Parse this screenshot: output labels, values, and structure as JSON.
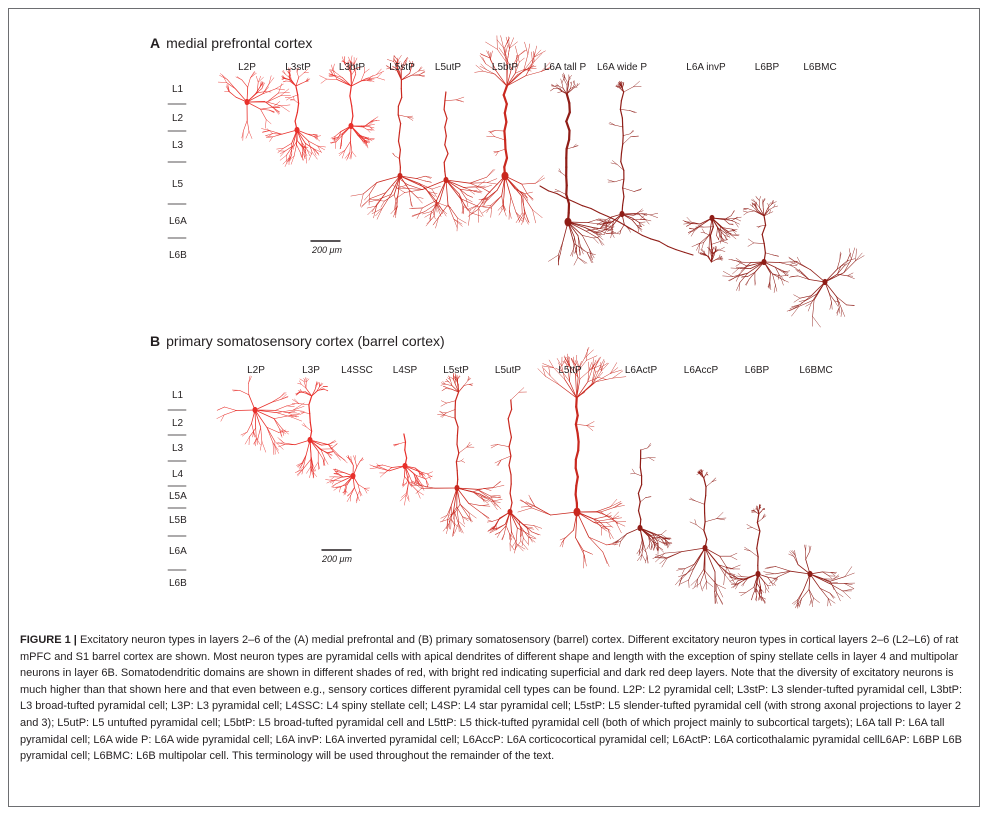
{
  "panel_a": {
    "letter": "A",
    "title": "medial prefrontal cortex",
    "cells": [
      "L2P",
      "L3stP",
      "L3btP",
      "L5stP",
      "L5utP",
      "L5btP",
      "L6A tall P",
      "L6A wide P",
      "L6A invP",
      "L6BP",
      "L6BMC"
    ],
    "layers": [
      "L1",
      "L2",
      "L3",
      "L5",
      "L6A",
      "L6B"
    ],
    "scale": "200 μm"
  },
  "panel_b": {
    "letter": "B",
    "title": "primary somatosensory cortex (barrel cortex)",
    "cells": [
      "L2P",
      "L3P",
      "L4SSC",
      "L4SP",
      "L5stP",
      "L5utP",
      "L5ttP",
      "L6ActP",
      "L6AccP",
      "L6BP",
      "L6BMC"
    ],
    "layers": [
      "L1",
      "L2",
      "L3",
      "L4",
      "L5A",
      "L5B",
      "L6A",
      "L6B"
    ],
    "scale": "200 μm"
  },
  "caption": {
    "figure_number": "FIGURE 1 |",
    "text": "Excitatory neuron types in layers 2–6 of the (A) medial prefrontal and (B) primary somatosensory (barrel) cortex. Different excitatory neuron types in cortical layers 2–6 (L2–L6) of rat mPFC and S1 barrel cortex are shown. Most neuron types are pyramidal cells with apical dendrites of different shape and length with the exception of spiny stellate cells in layer 4 and multipolar neurons in layer 6B. Somatodendritic domains are shown in different shades of red, with bright red indicating superficial and dark red deep layers. Note that the diversity of excitatory neurons is much higher than that shown here and that even between e.g., sensory cortices different pyramidal cell types can be found. L2P: L2 pyramidal cell; L3stP: L3 slender-tufted pyramidal cell, L3btP: L3 broad-tufted pyramidal cell; L3P: L3 pyramidal cell; L4SSC: L4 spiny stellate cell; L4SP: L4 star pyramidal cell; L5stP: L5 slender-tufted pyramidal cell (with strong axonal projections to layer 2 and 3); L5utP: L5 untufted pyramidal cell; L5btP: L5 broad-tufted pyramidal cell and L5ttP: L5 thick-tufted pyramidal cell (both of which project mainly to subcortical targets); L6A tall P: L6A tall pyramidal cell; L6A wide P: L6A wide pyramidal cell; L6A invP: L6A inverted pyramidal cell; L6AccP: L6A corticocortical pyramidal cell; L6ActP: L6A corticothalamic pyramidal cellL6AP: L6BP L6B pyramidal cell; L6BMC: L6B multipolar cell. This terminology will be used throughout the remainder of the text."
  },
  "colors": {
    "superficial": "#e8302b",
    "middle": "#c9281f",
    "deep": "#8f1d17",
    "text": "#231f20",
    "border": "#6d6e71"
  }
}
